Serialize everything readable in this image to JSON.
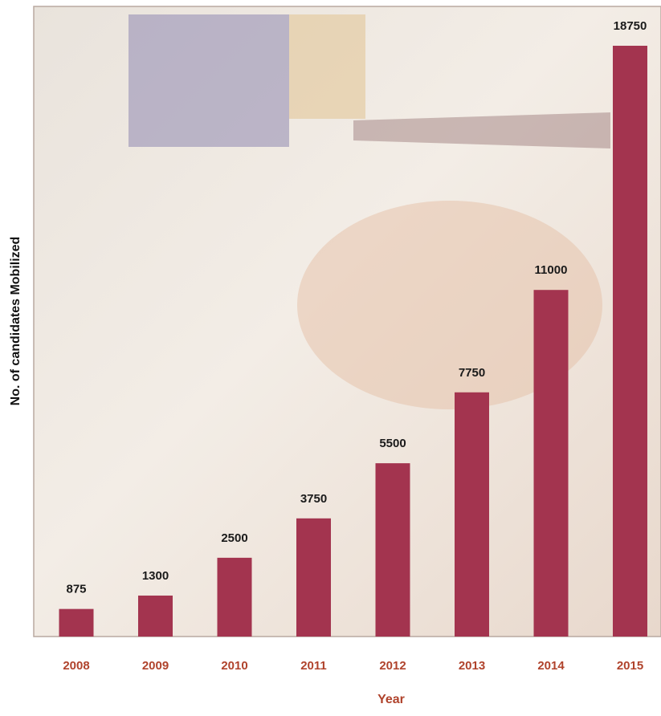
{
  "chart_data": {
    "type": "bar",
    "x_label": "Year",
    "y_label": "No. of candidates Mobilized",
    "categories": [
      "2008",
      "2009",
      "2010",
      "2011",
      "2012",
      "2013",
      "2014",
      "2015"
    ],
    "values": [
      875,
      1300,
      2500,
      3750,
      5500,
      7750,
      11000,
      18750
    ],
    "color": "#a3344f"
  }
}
